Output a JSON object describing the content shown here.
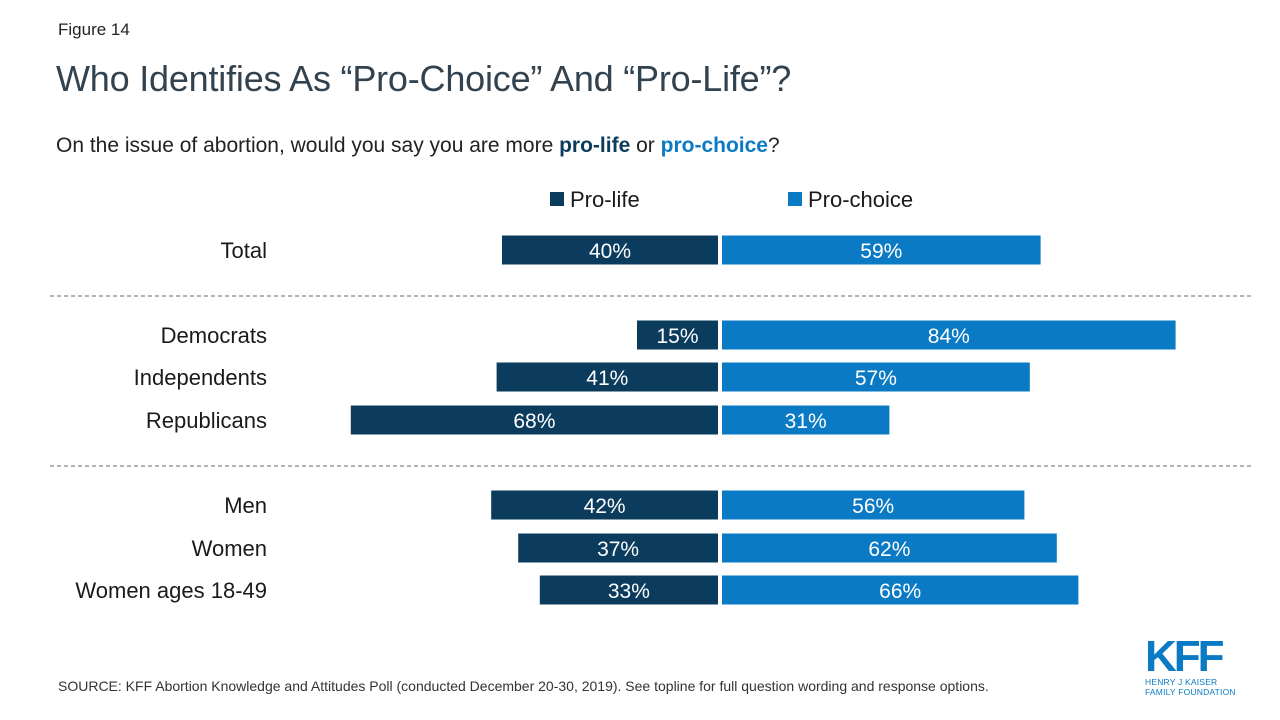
{
  "figure_label": "Figure 14",
  "title": "Who Identifies As “Pro-Choice” And “Pro-Life”?",
  "subtitle": {
    "prefix": "On the issue of abortion, would you say you are more ",
    "pro_life": "pro-life",
    "middle": " or ",
    "pro_choice": "pro-choice",
    "suffix": "?"
  },
  "source": "SOURCE: KFF Abortion Knowledge and Attitudes Poll (conducted December 20-30, 2019). See topline for full question wording and response options.",
  "logo": {
    "text": "KFF",
    "line1": "HENRY J KAISER",
    "line2": "FAMILY FOUNDATION"
  },
  "colors": {
    "pro_life": "#0b3c5d",
    "pro_choice": "#0b7ac5",
    "divider": "#888888"
  },
  "chart_data": {
    "type": "bar",
    "orientation": "horizontal-diverging",
    "legend": {
      "placement": "top-center",
      "entries": [
        "Pro-life",
        "Pro-choice"
      ]
    },
    "categories": [
      "Total",
      "Democrats",
      "Independents",
      "Republicans",
      "Men",
      "Women",
      "Women ages 18-49"
    ],
    "groups": [
      [
        "Total"
      ],
      [
        "Democrats",
        "Independents",
        "Republicans"
      ],
      [
        "Men",
        "Women",
        "Women ages 18-49"
      ]
    ],
    "series": [
      {
        "name": "Pro-life",
        "direction": "left",
        "values": [
          40,
          15,
          41,
          68,
          42,
          37,
          33
        ],
        "labels": [
          "40%",
          "15%",
          "41%",
          "68%",
          "42%",
          "37%",
          "33%"
        ]
      },
      {
        "name": "Pro-choice",
        "direction": "right",
        "values": [
          59,
          84,
          57,
          31,
          56,
          62,
          66
        ],
        "labels": [
          "59%",
          "84%",
          "57%",
          "31%",
          "56%",
          "62%",
          "66%"
        ]
      }
    ],
    "unit": "%",
    "grid": false
  }
}
